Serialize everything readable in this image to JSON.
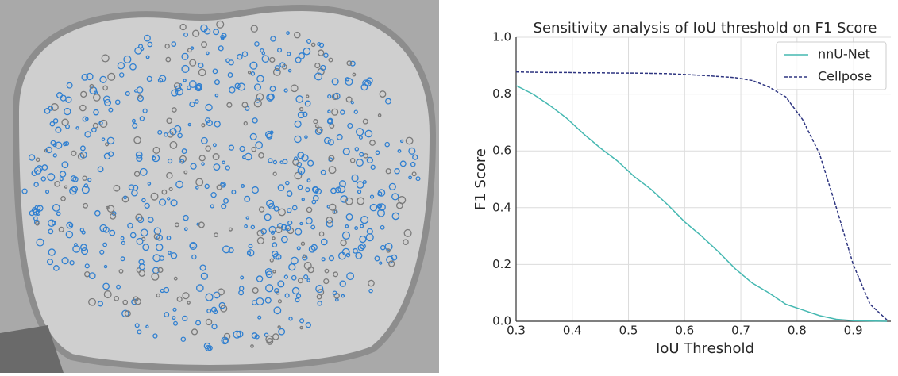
{
  "chart_data": {
    "type": "line",
    "title": "Sensitivity analysis of IoU threshold on F1 Score",
    "x_label": "IoU Threshold",
    "y_label": "F1 Score",
    "x": [
      0.3,
      0.33,
      0.36,
      0.39,
      0.42,
      0.45,
      0.48,
      0.51,
      0.54,
      0.57,
      0.6,
      0.63,
      0.66,
      0.69,
      0.72,
      0.75,
      0.78,
      0.81,
      0.84,
      0.87,
      0.9,
      0.93,
      0.96
    ],
    "series": [
      {
        "name": "nnU-Net",
        "color": "#45b8b1",
        "dash": false,
        "values": [
          0.83,
          0.8,
          0.76,
          0.715,
          0.66,
          0.61,
          0.565,
          0.51,
          0.465,
          0.41,
          0.35,
          0.3,
          0.245,
          0.185,
          0.135,
          0.1,
          0.06,
          0.04,
          0.02,
          0.007,
          0.002,
          0.001,
          0
        ]
      },
      {
        "name": "Cellpose",
        "color": "#2e3580",
        "dash": true,
        "values": [
          0.878,
          0.877,
          0.876,
          0.876,
          0.875,
          0.875,
          0.874,
          0.874,
          0.873,
          0.872,
          0.869,
          0.866,
          0.862,
          0.858,
          0.848,
          0.825,
          0.79,
          0.71,
          0.59,
          0.4,
          0.2,
          0.06,
          0.005
        ]
      }
    ],
    "xlim": [
      0.3,
      0.967
    ],
    "ylim": [
      0,
      1
    ],
    "xticks": [
      0.3,
      0.4,
      0.5,
      0.6,
      0.7,
      0.8,
      0.9
    ],
    "yticks": [
      {
        "value": 0,
        "label": "0.0"
      },
      0.2,
      0.4,
      0.6,
      0.8,
      {
        "value": 1,
        "label": "1.0"
      }
    ],
    "grid": true,
    "legend": "upper right"
  }
}
